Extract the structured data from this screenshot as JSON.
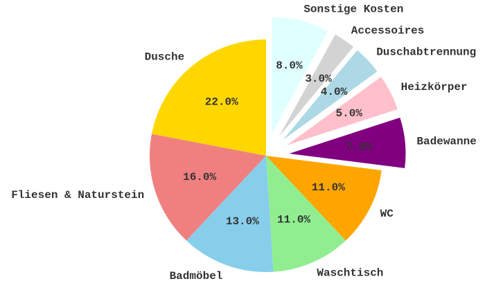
{
  "chart_data": {
    "type": "pie",
    "title": "",
    "start_angle_deg": 90,
    "direction": "counterclockwise",
    "slices": [
      {
        "label": "Dusche",
        "value": 22.0,
        "pct_text": "22.0%",
        "color": "#FFD700",
        "explode": 0
      },
      {
        "label": "Fliesen & Naturstein",
        "value": 16.0,
        "pct_text": "16.0%",
        "color": "#F08080",
        "explode": 0
      },
      {
        "label": "Badmöbel",
        "value": 13.0,
        "pct_text": "13.0%",
        "color": "#87CEEB",
        "explode": 0
      },
      {
        "label": "Waschtisch",
        "value": 11.0,
        "pct_text": "11.0%",
        "color": "#90EE90",
        "explode": 0
      },
      {
        "label": "WC",
        "value": 11.0,
        "pct_text": "11.0%",
        "color": "#FFA500",
        "explode": 0
      },
      {
        "label": "Badewanne",
        "value": 7.0,
        "pct_text": "7.0%",
        "color": "#800080",
        "explode": 0.2
      },
      {
        "label": "Heizkörper",
        "value": 5.0,
        "pct_text": "5.0%",
        "color": "#FFC0CB",
        "explode": 0.2
      },
      {
        "label": "Duschabtrennung",
        "value": 4.0,
        "pct_text": "4.0%",
        "color": "#ADD8E6",
        "explode": 0.2
      },
      {
        "label": "Accessoires",
        "value": 3.0,
        "pct_text": "3.0%",
        "color": "#D3D3D3",
        "explode": 0.2
      },
      {
        "label": "Sonstige Kosten",
        "value": 8.0,
        "pct_text": "8.0%",
        "color": "#E0FFFF",
        "explode": 0.2
      }
    ]
  }
}
